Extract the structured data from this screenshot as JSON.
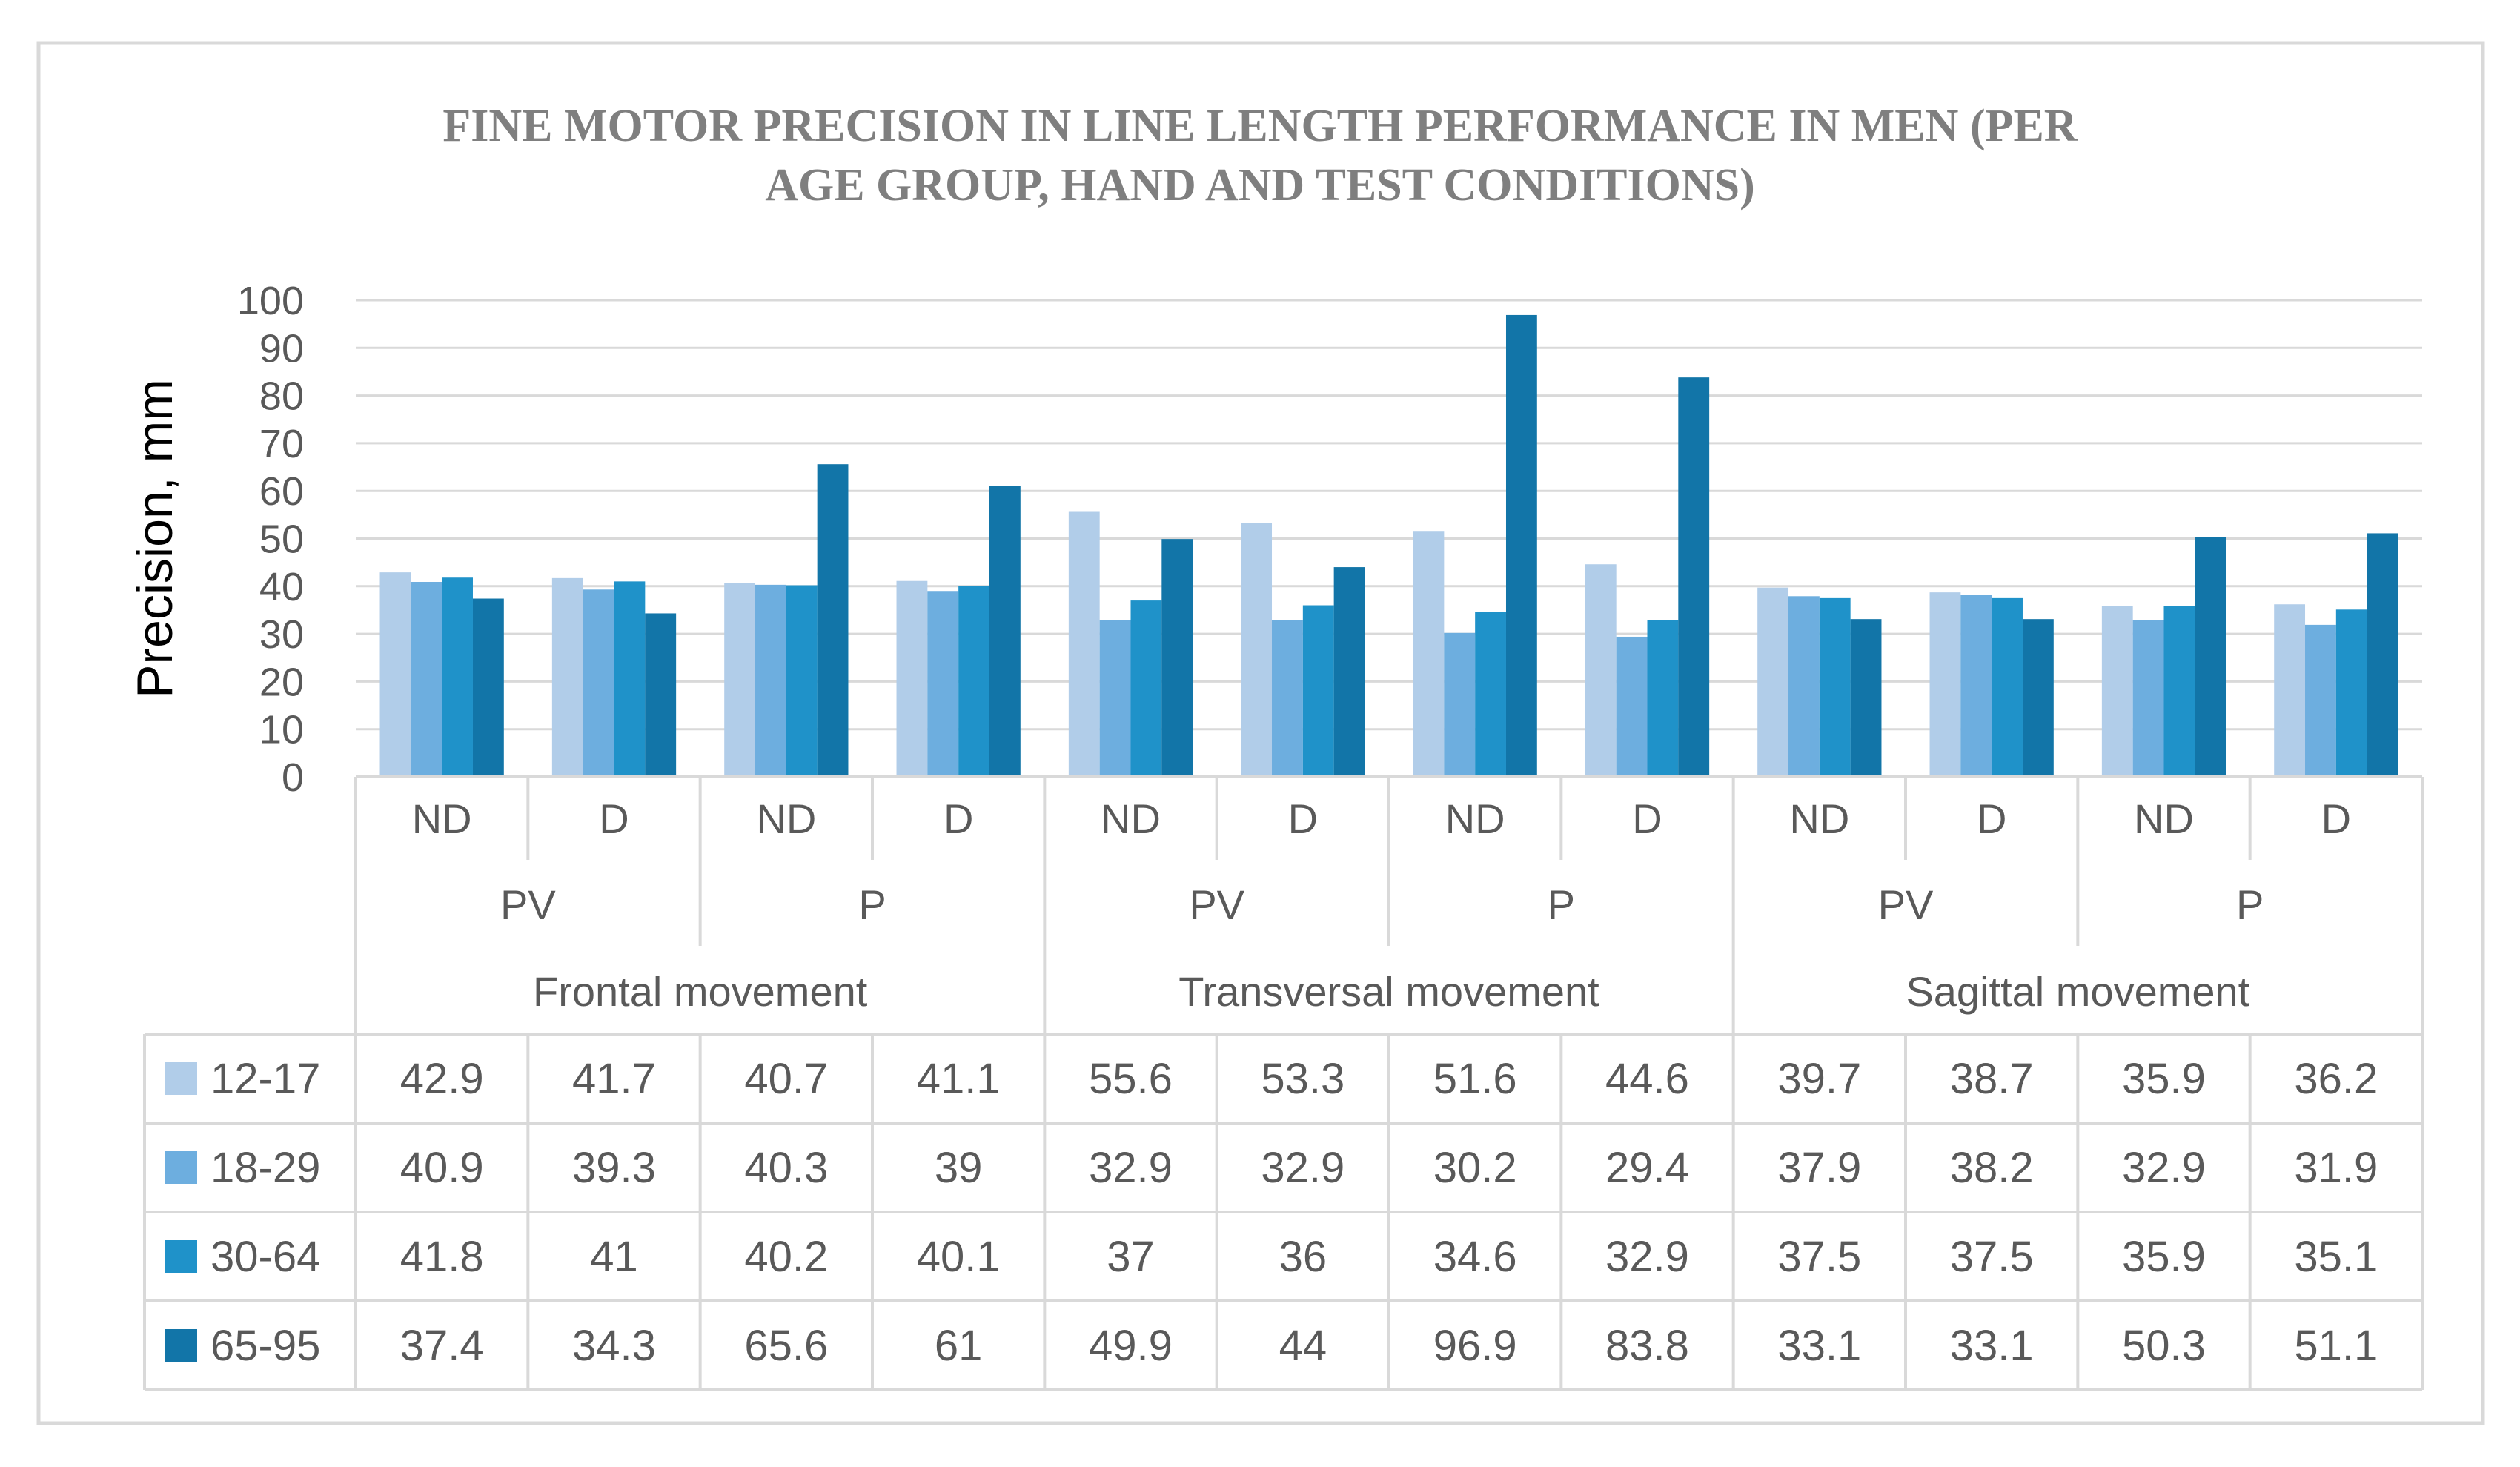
{
  "chart_data": {
    "type": "bar",
    "title_lines": [
      "FINE MOTOR PRECISION IN LINE LENGTH PERFORMANCE IN MEN (PER",
      "AGE GROUP, HAND AND TEST CONDITIONS)"
    ],
    "ylabel": "Precision, mm",
    "ylim": [
      0,
      100
    ],
    "y_ticks": [
      0,
      10,
      20,
      30,
      40,
      50,
      60,
      70,
      80,
      90,
      100
    ],
    "grid": true,
    "legend": "data-table",
    "categories": [
      {
        "movement": "Frontal movement",
        "condition": "PV",
        "hand": "ND"
      },
      {
        "movement": "Frontal movement",
        "condition": "PV",
        "hand": "D"
      },
      {
        "movement": "Frontal movement",
        "condition": "P",
        "hand": "ND"
      },
      {
        "movement": "Frontal movement",
        "condition": "P",
        "hand": "D"
      },
      {
        "movement": "Transversal movement",
        "condition": "PV",
        "hand": "ND"
      },
      {
        "movement": "Transversal movement",
        "condition": "PV",
        "hand": "D"
      },
      {
        "movement": "Transversal movement",
        "condition": "P",
        "hand": "ND"
      },
      {
        "movement": "Transversal movement",
        "condition": "P",
        "hand": "D"
      },
      {
        "movement": "Sagittal movement",
        "condition": "PV",
        "hand": "ND"
      },
      {
        "movement": "Sagittal movement",
        "condition": "PV",
        "hand": "D"
      },
      {
        "movement": "Sagittal movement",
        "condition": "P",
        "hand": "ND"
      },
      {
        "movement": "Sagittal movement",
        "condition": "P",
        "hand": "D"
      }
    ],
    "series": [
      {
        "name": "12-17",
        "color": "#b1cde9",
        "values": [
          42.9,
          41.7,
          40.7,
          41.1,
          55.6,
          53.3,
          51.6,
          44.6,
          39.7,
          38.7,
          35.9,
          36.2
        ],
        "labels": [
          "42.9",
          "41.7",
          "40.7",
          "41.1",
          "55.6",
          "53.3",
          "51.6",
          "44.6",
          "39.7",
          "38.7",
          "35.9",
          "36.2"
        ]
      },
      {
        "name": "18-29",
        "color": "#6daedf",
        "values": [
          40.9,
          39.3,
          40.3,
          39,
          32.9,
          32.9,
          30.2,
          29.4,
          37.9,
          38.2,
          32.9,
          31.9
        ],
        "labels": [
          "40.9",
          "39.3",
          "40.3",
          "39",
          "32.9",
          "32.9",
          "30.2",
          "29.4",
          "37.9",
          "38.2",
          "32.9",
          "31.9"
        ]
      },
      {
        "name": "30-64",
        "color": "#1f92c9",
        "values": [
          41.8,
          41,
          40.2,
          40.1,
          37,
          36,
          34.6,
          32.9,
          37.5,
          37.5,
          35.9,
          35.1
        ],
        "labels": [
          "41.8",
          "41",
          "40.2",
          "40.1",
          "37",
          "36",
          "34.6",
          "32.9",
          "37.5",
          "37.5",
          "35.9",
          "35.1"
        ]
      },
      {
        "name": "65-95",
        "color": "#1275a8",
        "values": [
          37.4,
          34.3,
          65.6,
          61,
          49.9,
          44,
          96.9,
          83.8,
          33.1,
          33.1,
          50.3,
          51.1
        ],
        "labels": [
          "37.4",
          "34.3",
          "65.6",
          "61",
          "49.9",
          "44",
          "96.9",
          "83.8",
          "33.1",
          "33.1",
          "50.3",
          "51.1"
        ]
      }
    ]
  }
}
